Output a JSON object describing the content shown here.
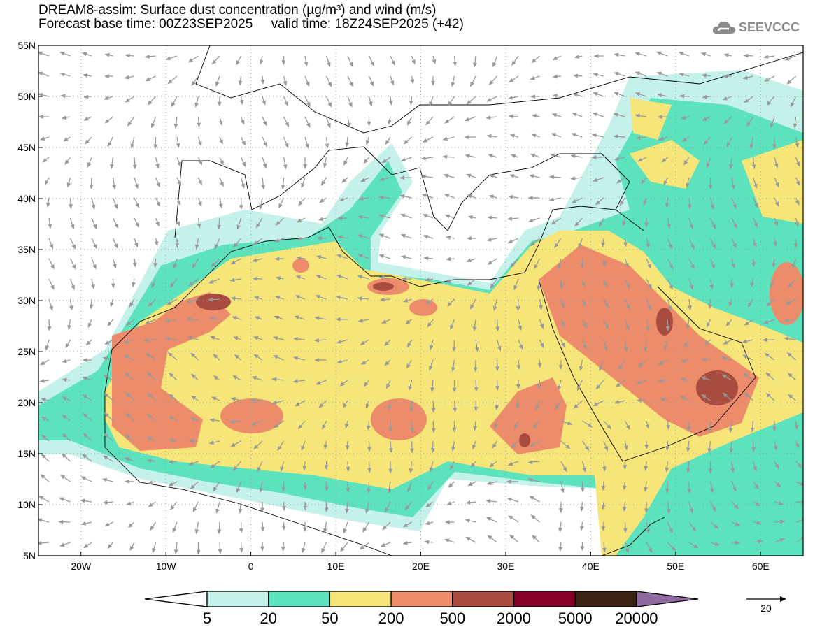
{
  "header": {
    "title": "DREAM8-assim: Surface dust concentration (µg/m³) and wind (m/s)",
    "subtitle": "Forecast base time: 00Z23SEP2025     valid time: 18Z24SEP2025 (+42)"
  },
  "logo": {
    "text": "SEEVCCC",
    "icon": "cloud-icon"
  },
  "map": {
    "lat_ticks": [
      "55N",
      "50N",
      "45N",
      "40N",
      "35N",
      "30N",
      "25N",
      "20N",
      "15N",
      "10N",
      "5N"
    ],
    "lon_ticks": [
      "20W",
      "10W",
      "0",
      "10E",
      "20E",
      "30E",
      "40E",
      "50E",
      "60E"
    ],
    "lon_range": [
      -25,
      65
    ],
    "lat_range": [
      5,
      55
    ]
  },
  "legend": {
    "levels": [
      "5",
      "20",
      "50",
      "200",
      "500",
      "2000",
      "5000",
      "20000"
    ],
    "colors": [
      "#c4f1ea",
      "#5ce3bd",
      "#f6e67a",
      "#ec8c6b",
      "#a94c40",
      "#850029",
      "#3b2313",
      "#8e6aa0"
    ],
    "wind_ref_label": "20"
  }
}
